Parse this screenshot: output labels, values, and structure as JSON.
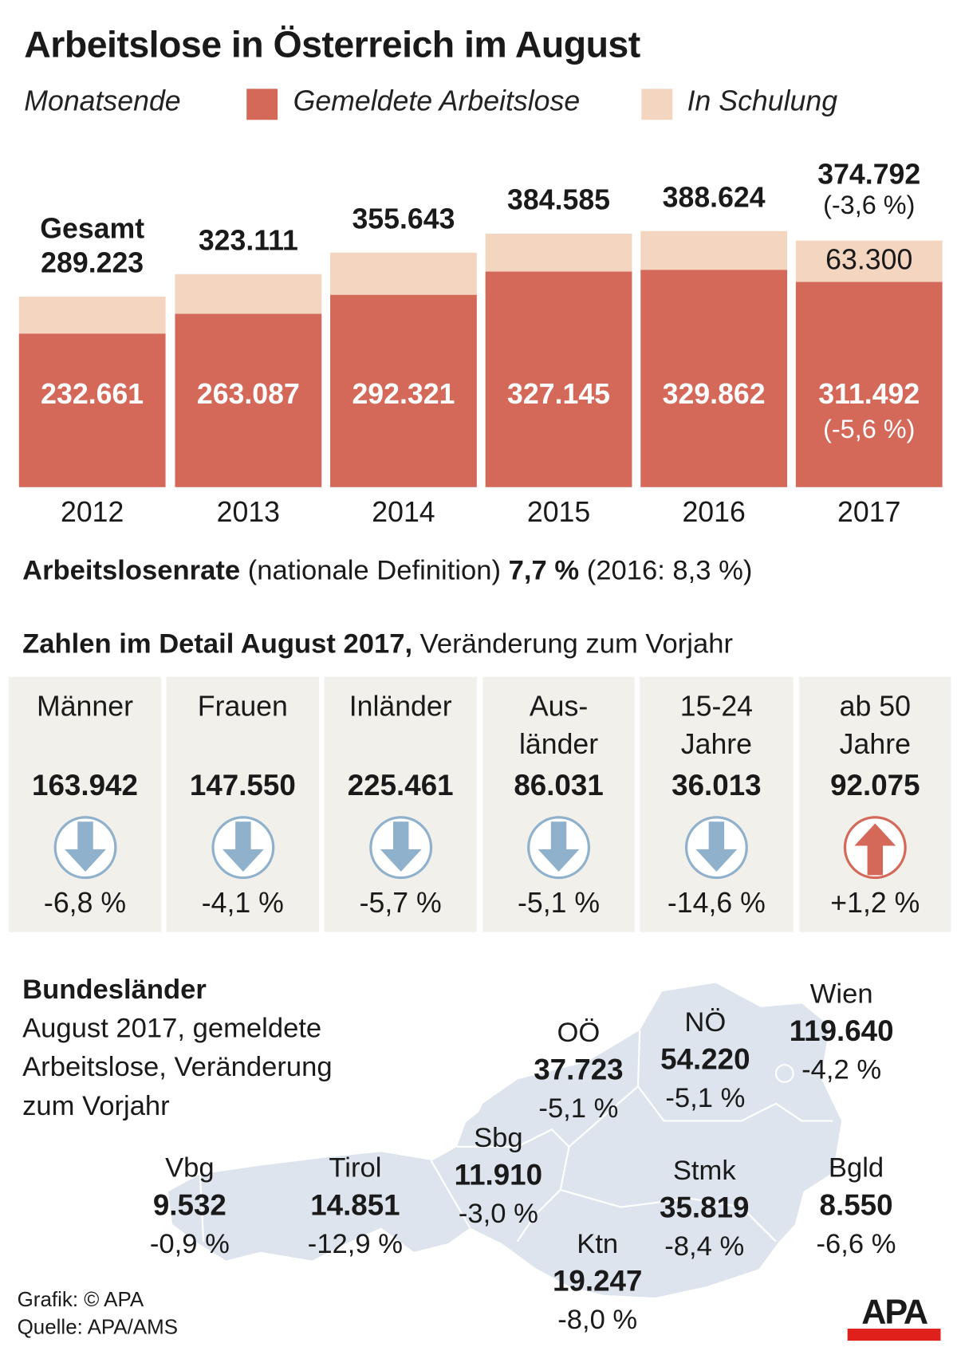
{
  "title": "Arbeitslose in Österreich im August",
  "legend": {
    "label": "Monatsende",
    "series1": "Gemeldete Arbeitslose",
    "series2": "In Schulung"
  },
  "colors": {
    "gemeldete": "#d4695a",
    "schulung": "#f4d5c0",
    "down_arrow": "#8fb1cc",
    "up_arrow": "#d4695a",
    "panel": "#f2f0eb",
    "map": "#dde4ee"
  },
  "chart_data": {
    "type": "bar",
    "stacked": true,
    "categories": [
      "2012",
      "2013",
      "2014",
      "2015",
      "2016",
      "2017"
    ],
    "series": [
      {
        "name": "Gemeldete Arbeitslose",
        "values": [
          232661,
          263087,
          292321,
          327145,
          329862,
          311492
        ]
      },
      {
        "name": "In Schulung",
        "values": [
          56562,
          60024,
          63322,
          57440,
          58762,
          63300
        ]
      }
    ],
    "totals": [
      289223,
      323111,
      355643,
      384585,
      388624,
      374792
    ],
    "total_prefix": "Gesamt",
    "labels": {
      "totals": [
        "289.223",
        "323.111",
        "355.643",
        "384.585",
        "388.624",
        "374.792"
      ],
      "gemeldete": [
        "232.661",
        "263.087",
        "292.321",
        "327.145",
        "329.862",
        "311.492"
      ],
      "schulung_2017": "63.300",
      "total_change_2017": "(-3,6 %)",
      "gemeldete_change_2017": "(-5,6 %)"
    },
    "ylim": [
      0,
      400000
    ],
    "grid": false
  },
  "rate": {
    "bold": "Arbeitslosenrate",
    "text": " (nationale Definition) ",
    "value": "7,7 %",
    "prev": " (2016: 8,3 %)"
  },
  "detail": {
    "heading_bold": "Zahlen im Detail August 2017,",
    "heading_rest": " Veränderung zum Vorjahr",
    "items": [
      {
        "label1": "Männer",
        "label2": "",
        "value": "163.942",
        "change": "-6,8 %",
        "direction": "down"
      },
      {
        "label1": "Frauen",
        "label2": "",
        "value": "147.550",
        "change": "-4,1 %",
        "direction": "down"
      },
      {
        "label1": "Inländer",
        "label2": "",
        "value": "225.461",
        "change": "-5,7 %",
        "direction": "down"
      },
      {
        "label1": "Aus-",
        "label2": "länder",
        "value": "86.031",
        "change": "-5,1 %",
        "direction": "down"
      },
      {
        "label1": "15-24",
        "label2": "Jahre",
        "value": "36.013",
        "change": "-14,6 %",
        "direction": "down"
      },
      {
        "label1": "ab 50",
        "label2": "Jahre",
        "value": "92.075",
        "change": "+1,2 %",
        "direction": "up"
      }
    ]
  },
  "states": {
    "heading": "Bundesländer",
    "sub1": "August 2017, gemeldete",
    "sub2": "Arbeitslose, Veränderung",
    "sub3": "zum Vorjahr",
    "items": [
      {
        "name": "Vbg",
        "value": "9.532",
        "change": "-0,9 %"
      },
      {
        "name": "Tirol",
        "value": "14.851",
        "change": "-12,9 %"
      },
      {
        "name": "Sbg",
        "value": "11.910",
        "change": "-3,0 %"
      },
      {
        "name": "OÖ",
        "value": "37.723",
        "change": "-5,1 %"
      },
      {
        "name": "NÖ",
        "value": "54.220",
        "change": "-5,1 %"
      },
      {
        "name": "Wien",
        "value": "119.640",
        "change": "-4,2 %"
      },
      {
        "name": "Stmk",
        "value": "35.819",
        "change": "-8,4 %"
      },
      {
        "name": "Bgld",
        "value": "8.550",
        "change": "-6,6 %"
      },
      {
        "name": "Ktn",
        "value": "19.247",
        "change": "-8,0 %"
      }
    ]
  },
  "footer": {
    "grafik": "Grafik: © APA",
    "quelle": "Quelle: APA/AMS",
    "logo": "APA"
  }
}
